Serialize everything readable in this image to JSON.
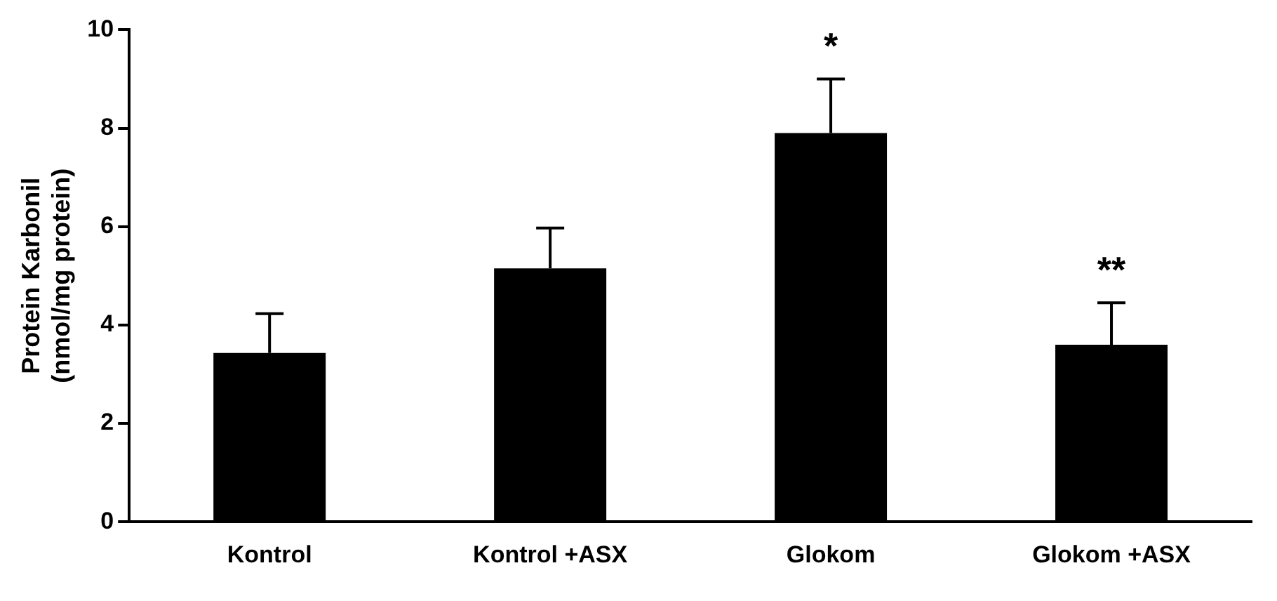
{
  "chart_data": {
    "type": "bar",
    "ylabel": "Protein Karbonil\n(nmol/mg protein)",
    "categories": [
      "Kontrol",
      "Kontrol +ASX",
      "Glokom",
      "Glokom +ASX"
    ],
    "values": [
      3.43,
      5.15,
      7.9,
      3.6
    ],
    "color": "#000000",
    "errors": [
      [
        3.43,
        4.23
      ],
      [
        5.15,
        5.97
      ],
      [
        7.9,
        9.0
      ],
      [
        3.6,
        4.45
      ]
    ],
    "ylim": [
      0,
      10
    ],
    "yticks": [
      0,
      2,
      4,
      6,
      8,
      10
    ],
    "grid": false,
    "legend": false,
    "annotations": [
      {
        "text": "*",
        "x": "Glokom",
        "y": 9.0
      },
      {
        "text": "**",
        "x": "Glokom +ASX",
        "y": 4.45
      }
    ]
  }
}
